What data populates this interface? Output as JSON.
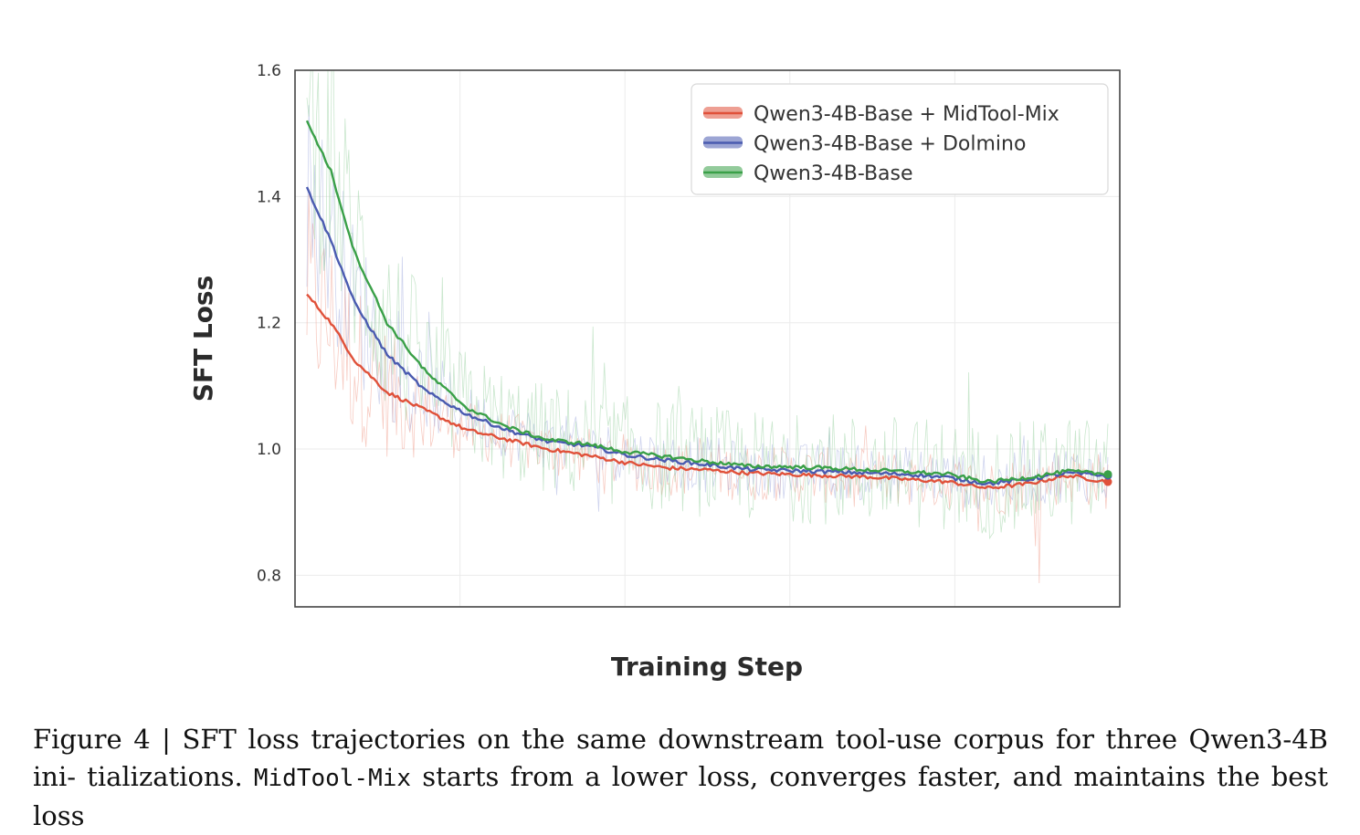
{
  "chart_data": {
    "type": "line",
    "title": "",
    "xlabel": "Training Step",
    "ylabel": "SFT Loss",
    "xlim": [
      0,
      1
    ],
    "ylim": [
      0.75,
      1.6
    ],
    "yticks": [
      0.8,
      1.0,
      1.2,
      1.4,
      1.6
    ],
    "ytick_labels": [
      "0.8",
      "1.0",
      "1.2",
      "1.4",
      "1.6"
    ],
    "x_tick_labels_shown": false,
    "grid": true,
    "legend_position": "top-right",
    "series": [
      {
        "name": "Qwen3-4B-Base + MidTool-Mix",
        "color": "#e0513a",
        "raw_color": "#f0a090",
        "x": [
          0.0,
          0.03,
          0.06,
          0.1,
          0.15,
          0.2,
          0.25,
          0.3,
          0.35,
          0.4,
          0.45,
          0.5,
          0.55,
          0.6,
          0.65,
          0.7,
          0.75,
          0.8,
          0.85,
          0.9,
          0.95,
          1.0
        ],
        "values": [
          1.245,
          1.2,
          1.14,
          1.09,
          1.06,
          1.03,
          1.015,
          1.0,
          0.99,
          0.978,
          0.97,
          0.967,
          0.962,
          0.96,
          0.958,
          0.956,
          0.952,
          0.948,
          0.938,
          0.945,
          0.958,
          0.948
        ]
      },
      {
        "name": "Qwen3-4B-Base + Dolmino",
        "color": "#4a5bb0",
        "raw_color": "#a8b0e0",
        "x": [
          0.0,
          0.03,
          0.06,
          0.1,
          0.15,
          0.2,
          0.25,
          0.3,
          0.35,
          0.4,
          0.45,
          0.5,
          0.55,
          0.6,
          0.65,
          0.7,
          0.75,
          0.8,
          0.85,
          0.9,
          0.95,
          1.0
        ],
        "values": [
          1.415,
          1.33,
          1.23,
          1.15,
          1.09,
          1.055,
          1.03,
          1.012,
          1.005,
          0.99,
          0.982,
          0.975,
          0.968,
          0.966,
          0.964,
          0.962,
          0.96,
          0.955,
          0.945,
          0.952,
          0.962,
          0.958
        ]
      },
      {
        "name": "Qwen3-4B-Base",
        "color": "#3aa048",
        "raw_color": "#9ed4a6",
        "x": [
          0.0,
          0.03,
          0.06,
          0.1,
          0.15,
          0.2,
          0.25,
          0.3,
          0.35,
          0.4,
          0.45,
          0.5,
          0.55,
          0.6,
          0.65,
          0.7,
          0.75,
          0.8,
          0.85,
          0.9,
          0.95,
          1.0
        ],
        "values": [
          1.52,
          1.44,
          1.31,
          1.2,
          1.12,
          1.065,
          1.035,
          1.015,
          1.008,
          0.995,
          0.988,
          0.98,
          0.973,
          0.972,
          0.97,
          0.967,
          0.964,
          0.96,
          0.948,
          0.955,
          0.965,
          0.96
        ]
      }
    ]
  },
  "caption": {
    "label": "Figure 4 | ",
    "text1": "SFT loss trajectories on the same downstream tool-use corpus for three Qwen3-4B ini- tializations. ",
    "code": "MidTool-Mix",
    "text2": " starts from a lower loss, converges faster, and maintains the best loss"
  }
}
